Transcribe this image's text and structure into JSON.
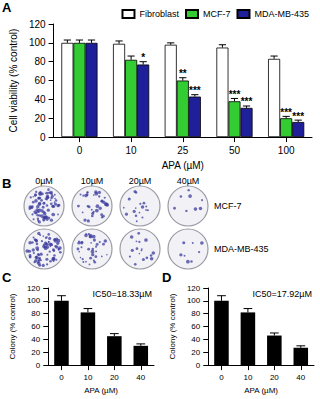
{
  "chart_data": [
    {
      "type": "bar",
      "panel_label": "A",
      "x_label": "APA (µM)",
      "y_label": "Cell viability (% control)",
      "categories": [
        "0",
        "10",
        "25",
        "50",
        "100"
      ],
      "series": [
        {
          "name": "Fibroblast",
          "color": "#ffffff",
          "values": [
            100,
            99,
            98,
            95,
            83
          ],
          "errors": [
            3,
            3,
            2,
            3,
            3
          ]
        },
        {
          "name": "MCF-7",
          "color": "#33cc33",
          "values": [
            100,
            82,
            60,
            38,
            20
          ],
          "errors": [
            3,
            4,
            3,
            3,
            2
          ],
          "significance": [
            null,
            null,
            "**",
            "***",
            "***"
          ]
        },
        {
          "name": "MDA-MB-435",
          "color": "#1f1f99",
          "values": [
            100,
            77,
            43,
            31,
            16
          ],
          "errors": [
            3,
            3,
            2,
            2,
            2
          ],
          "significance": [
            null,
            "*",
            "***",
            "***",
            "***"
          ]
        }
      ],
      "ylim": [
        0,
        120
      ],
      "yticks": [
        0,
        20,
        40,
        60,
        80,
        100,
        120
      ],
      "legend": "upper right",
      "grid": false
    },
    {
      "type": "bar",
      "panel_label": "C",
      "annotation": "IC50=18.33µM",
      "x_label": "APA (µM)",
      "y_label": "Colony (% control)",
      "categories": [
        "0",
        "10",
        "20",
        "40"
      ],
      "values": [
        100,
        82,
        45,
        30
      ],
      "errors": [
        8,
        6,
        4,
        3
      ],
      "color": "#000000",
      "ylim": [
        0,
        120
      ],
      "yticks": [
        0,
        20,
        40,
        60,
        80,
        100,
        120
      ],
      "grid": false
    },
    {
      "type": "bar",
      "panel_label": "D",
      "annotation": "IC50=17.92µM",
      "x_label": "APA (µM)",
      "y_label": "Colony (% control)",
      "categories": [
        "0",
        "10",
        "20",
        "40"
      ],
      "values": [
        100,
        82,
        46,
        27
      ],
      "errors": [
        8,
        6,
        4,
        3
      ],
      "color": "#000000",
      "ylim": [
        0,
        120
      ],
      "yticks": [
        0,
        20,
        40,
        60,
        80,
        100,
        120
      ],
      "grid": false
    }
  ],
  "panel_b": {
    "panel_label": "B",
    "columns": [
      "0µM",
      "10µM",
      "20µM",
      "40µM"
    ],
    "rows": [
      "MCF-7",
      "MDA-MB-435"
    ]
  }
}
